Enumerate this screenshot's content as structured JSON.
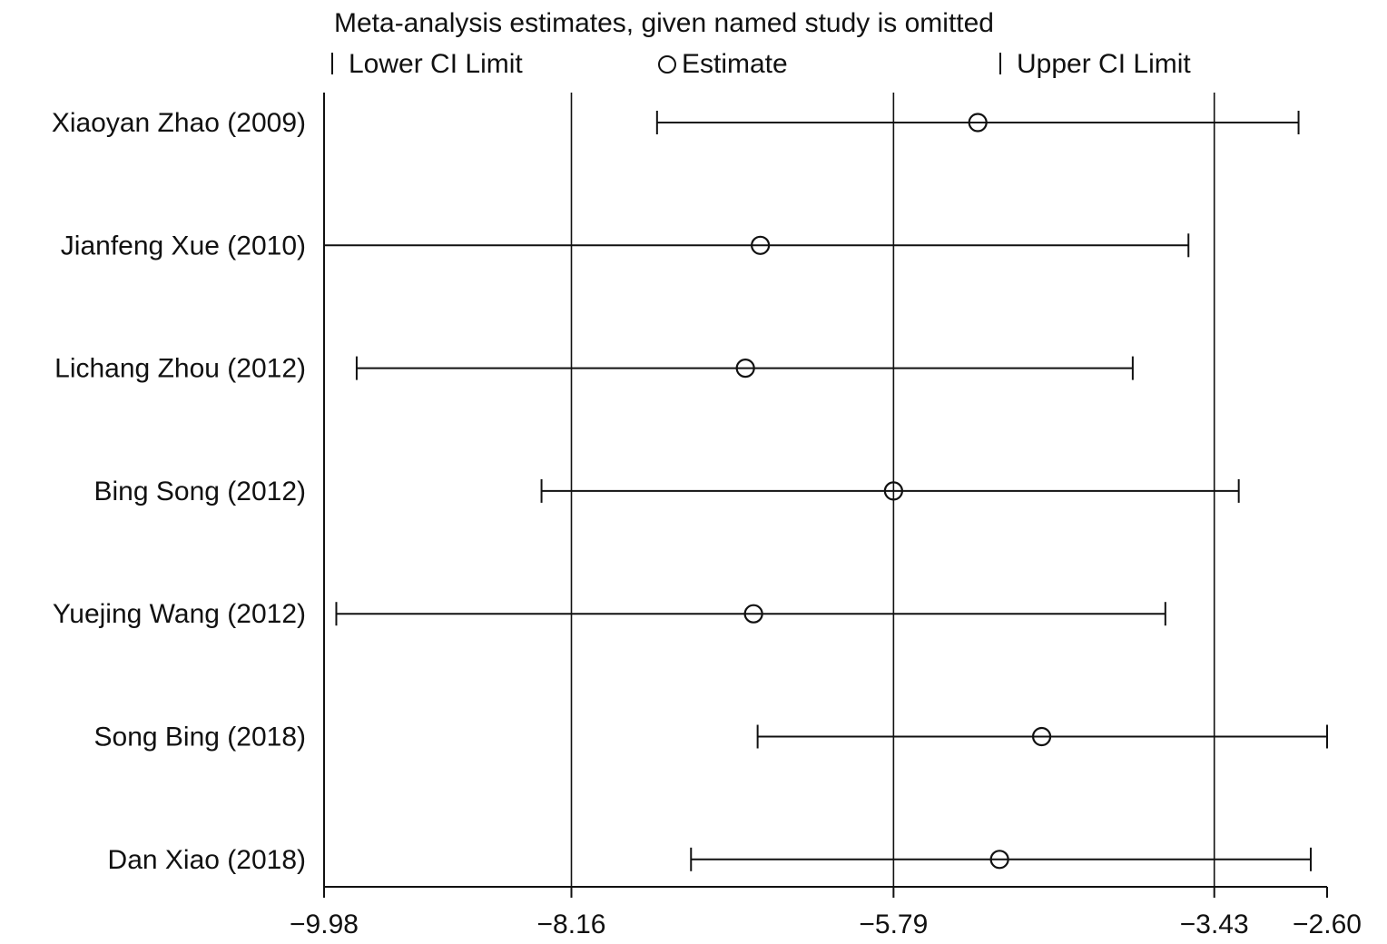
{
  "chart_data": {
    "type": "forest",
    "title": "Meta-analysis estimates, given named study is omitted",
    "legend": {
      "lower": "Lower CI Limit",
      "estimate": "Estimate",
      "upper": "Upper CI Limit",
      "placement": "top"
    },
    "xlim": [
      -9.98,
      -2.6
    ],
    "xticks": [
      -9.98,
      -8.16,
      -5.79,
      -3.43,
      -2.6
    ],
    "xtick_labels": [
      "−9.98",
      "−8.16",
      "−5.79",
      "−3.43",
      "−2.60"
    ],
    "reference_lines": [
      -8.16,
      -5.79,
      -3.43
    ],
    "grid": false,
    "studies": [
      {
        "label": "Xiaoyan Zhao  (2009)",
        "lower": -7.53,
        "estimate": -5.17,
        "upper": -2.81
      },
      {
        "label": "Jianfeng Xue  (2010)",
        "lower": -9.98,
        "estimate": -6.77,
        "upper": -3.62
      },
      {
        "label": "Lichang Zhou  (2012)",
        "lower": -9.74,
        "estimate": -6.88,
        "upper": -4.03
      },
      {
        "label": "Bing Song  (2012)",
        "lower": -8.38,
        "estimate": -5.79,
        "upper": -3.25
      },
      {
        "label": "Yuejing Wang  (2012)",
        "lower": -9.89,
        "estimate": -6.82,
        "upper": -3.79
      },
      {
        "label": "Song Bing  (2018)",
        "lower": -6.79,
        "estimate": -4.7,
        "upper": -2.6
      },
      {
        "label": "Dan Xiao  (2018)",
        "lower": -7.28,
        "estimate": -5.01,
        "upper": -2.72
      }
    ]
  }
}
